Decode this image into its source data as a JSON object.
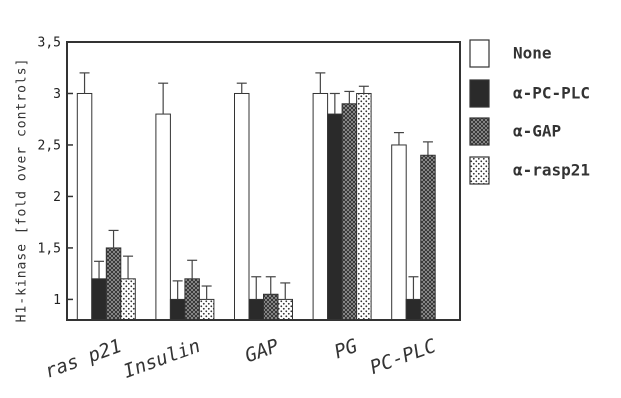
{
  "chart_data": {
    "type": "bar",
    "title": "",
    "xlabel": "",
    "ylabel": "H1-kinase [fold over controls]",
    "ylim": [
      0.8,
      3.5
    ],
    "yticks": [
      1,
      1.5,
      2,
      2.5,
      3,
      3.5
    ],
    "ytick_labels": [
      "1",
      "1,5",
      "2",
      "2,5",
      "3",
      "3,5"
    ],
    "grid": false,
    "legend_position": "right",
    "categories": [
      "ras p21",
      "Insulin",
      "GAP",
      "PG",
      "PC-PLC"
    ],
    "series": [
      {
        "name": "None",
        "pattern": "white",
        "values": [
          3.0,
          2.8,
          3.0,
          3.0,
          2.5
        ],
        "errors": [
          0.2,
          0.3,
          0.1,
          0.2,
          0.12
        ]
      },
      {
        "name": "α-PC-PLC",
        "pattern": "black",
        "values": [
          1.2,
          1.0,
          1.0,
          2.8,
          1.0
        ],
        "errors": [
          0.17,
          0.18,
          0.22,
          0.2,
          0.22
        ]
      },
      {
        "name": "α-GAP",
        "pattern": "crosshatch",
        "values": [
          1.5,
          1.2,
          1.05,
          2.9,
          2.4
        ],
        "errors": [
          0.17,
          0.18,
          0.17,
          0.12,
          0.13
        ]
      },
      {
        "name": "α-rasp21",
        "pattern": "dots",
        "values": [
          1.2,
          1.0,
          1.0,
          3.0,
          null
        ],
        "errors": [
          0.22,
          0.13,
          0.16,
          0.07,
          null
        ]
      }
    ]
  }
}
